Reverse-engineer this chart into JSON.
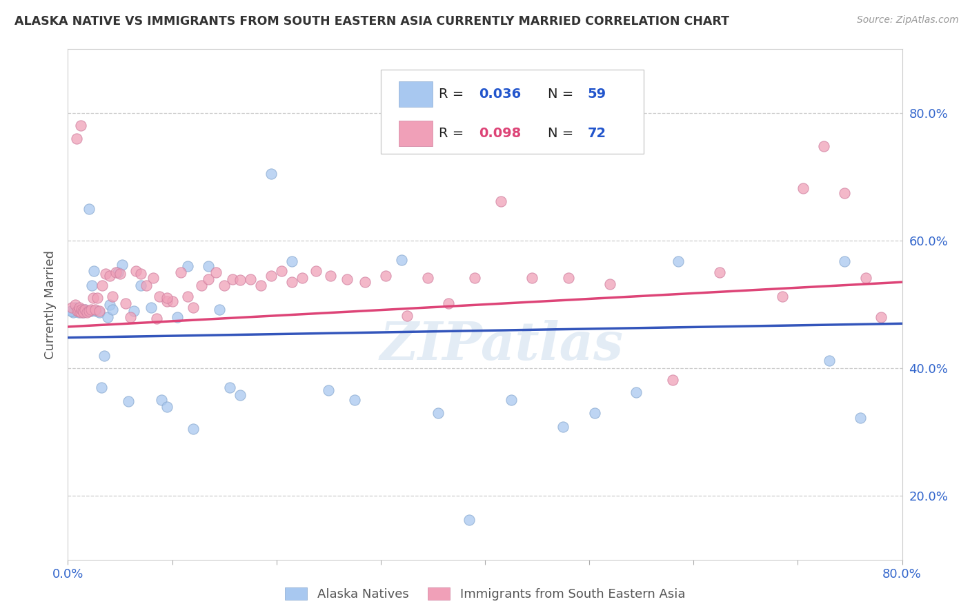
{
  "title": "ALASKA NATIVE VS IMMIGRANTS FROM SOUTH EASTERN ASIA CURRENTLY MARRIED CORRELATION CHART",
  "source": "Source: ZipAtlas.com",
  "ylabel": "Currently Married",
  "xmin": 0.0,
  "xmax": 0.8,
  "ymin": 0.1,
  "ymax": 0.9,
  "blue_color": "#A8C8F0",
  "pink_color": "#F0A0B8",
  "blue_line_color": "#3355BB",
  "pink_line_color": "#DD4477",
  "legend_label1": "Alaska Natives",
  "legend_label2": "Immigrants from South Eastern Asia",
  "watermark": "ZIPatlas",
  "blue_scatter_x": [
    0.004,
    0.006,
    0.007,
    0.008,
    0.009,
    0.01,
    0.01,
    0.011,
    0.012,
    0.013,
    0.013,
    0.014,
    0.015,
    0.016,
    0.016,
    0.018,
    0.02,
    0.022,
    0.023,
    0.025,
    0.027,
    0.03,
    0.032,
    0.035,
    0.038,
    0.04,
    0.043,
    0.048,
    0.052,
    0.058,
    0.063,
    0.07,
    0.08,
    0.09,
    0.095,
    0.105,
    0.115,
    0.12,
    0.135,
    0.145,
    0.155,
    0.165,
    0.195,
    0.215,
    0.25,
    0.275,
    0.32,
    0.355,
    0.385,
    0.425,
    0.475,
    0.505,
    0.545,
    0.585,
    0.73,
    0.745,
    0.76,
    0.005,
    0.003
  ],
  "blue_scatter_y": [
    0.49,
    0.49,
    0.495,
    0.49,
    0.49,
    0.488,
    0.492,
    0.49,
    0.49,
    0.49,
    0.492,
    0.488,
    0.49,
    0.49,
    0.492,
    0.49,
    0.65,
    0.49,
    0.53,
    0.552,
    0.49,
    0.488,
    0.37,
    0.42,
    0.48,
    0.5,
    0.492,
    0.55,
    0.562,
    0.348,
    0.49,
    0.53,
    0.495,
    0.35,
    0.34,
    0.48,
    0.56,
    0.305,
    0.56,
    0.492,
    0.37,
    0.358,
    0.705,
    0.568,
    0.365,
    0.35,
    0.57,
    0.33,
    0.162,
    0.35,
    0.308,
    0.33,
    0.362,
    0.568,
    0.412,
    0.568,
    0.322,
    0.488,
    0.49
  ],
  "pink_scatter_x": [
    0.004,
    0.007,
    0.009,
    0.01,
    0.011,
    0.012,
    0.013,
    0.014,
    0.015,
    0.016,
    0.018,
    0.02,
    0.022,
    0.024,
    0.026,
    0.028,
    0.03,
    0.033,
    0.036,
    0.04,
    0.043,
    0.046,
    0.05,
    0.055,
    0.06,
    0.065,
    0.07,
    0.075,
    0.082,
    0.088,
    0.095,
    0.1,
    0.108,
    0.115,
    0.12,
    0.128,
    0.135,
    0.142,
    0.15,
    0.158,
    0.165,
    0.175,
    0.185,
    0.195,
    0.205,
    0.215,
    0.225,
    0.238,
    0.252,
    0.268,
    0.285,
    0.305,
    0.325,
    0.345,
    0.365,
    0.39,
    0.415,
    0.445,
    0.48,
    0.52,
    0.58,
    0.625,
    0.685,
    0.705,
    0.725,
    0.745,
    0.765,
    0.78,
    0.008,
    0.012,
    0.085,
    0.095
  ],
  "pink_scatter_y": [
    0.495,
    0.5,
    0.49,
    0.49,
    0.495,
    0.488,
    0.492,
    0.49,
    0.488,
    0.492,
    0.488,
    0.49,
    0.492,
    0.51,
    0.492,
    0.51,
    0.49,
    0.53,
    0.548,
    0.545,
    0.512,
    0.55,
    0.548,
    0.502,
    0.48,
    0.552,
    0.548,
    0.53,
    0.542,
    0.512,
    0.505,
    0.505,
    0.55,
    0.512,
    0.495,
    0.53,
    0.54,
    0.55,
    0.53,
    0.54,
    0.538,
    0.54,
    0.53,
    0.545,
    0.552,
    0.535,
    0.542,
    0.552,
    0.545,
    0.54,
    0.535,
    0.545,
    0.482,
    0.542,
    0.502,
    0.542,
    0.662,
    0.542,
    0.542,
    0.532,
    0.382,
    0.55,
    0.512,
    0.682,
    0.748,
    0.675,
    0.542,
    0.48,
    0.76,
    0.78,
    0.478,
    0.51
  ],
  "blue_line_x0": 0.0,
  "blue_line_x1": 0.8,
  "blue_line_y0": 0.448,
  "blue_line_y1": 0.47,
  "pink_line_x0": 0.0,
  "pink_line_x1": 0.8,
  "pink_line_y0": 0.465,
  "pink_line_y1": 0.535
}
